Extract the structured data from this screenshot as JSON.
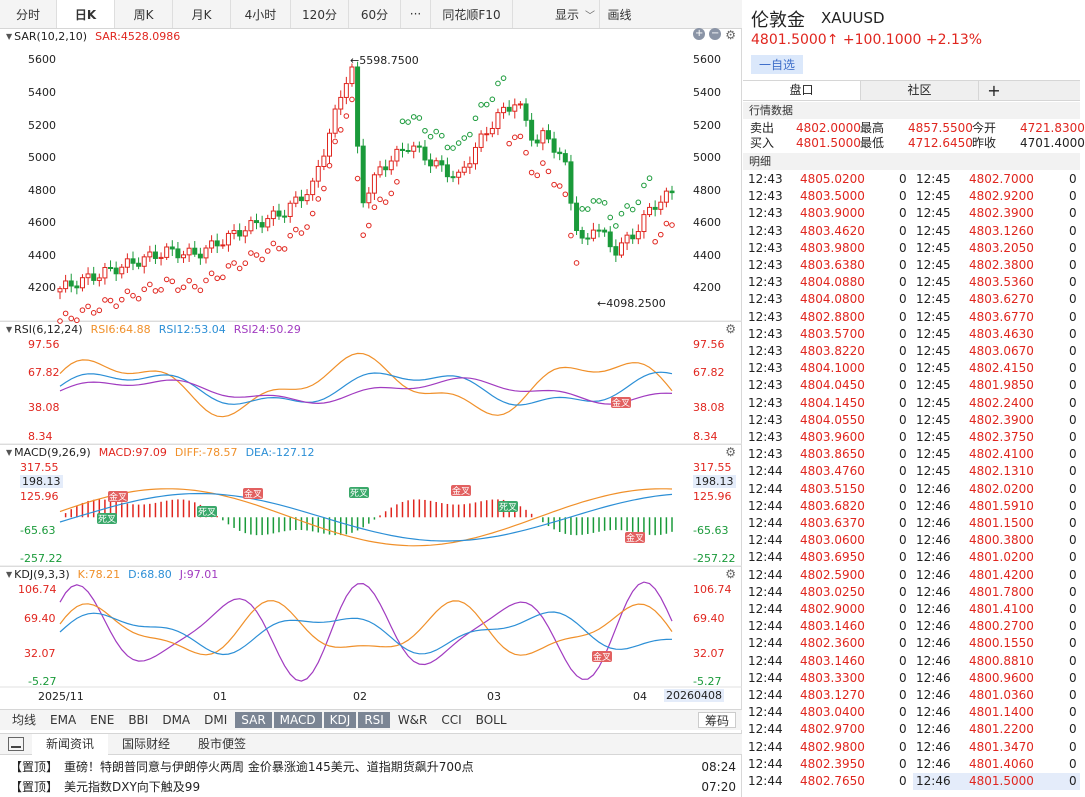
{
  "period_tabs": [
    "分时",
    "日K",
    "周K",
    "月K",
    "4小时",
    "120分",
    "60分",
    "···",
    "同花顺F10"
  ],
  "display_label": "显示",
  "draw_label": "画线",
  "panels": {
    "sar": {
      "name": "SAR(10,2,10)",
      "value": "SAR:4528.0986",
      "high_label": "←5598.7500",
      "low_label": "←4098.2500",
      "ticks": [
        "5600",
        "5400",
        "5200",
        "5000",
        "4800",
        "4600",
        "4400",
        "4200"
      ]
    },
    "rsi": {
      "name": "RSI(6,12,24)",
      "rsi6": "RSI6:64.88",
      "rsi12": "RSI12:53.04",
      "rsi24": "RSI24:50.29",
      "ticks": [
        "97.56",
        "67.82",
        "38.08",
        "8.34"
      ],
      "badge": "金叉"
    },
    "macd": {
      "name": "MACD(9,26,9)",
      "macd": "MACD:97.09",
      "diff": "DIFF:-78.57",
      "dea": "DEA:-127.12",
      "ticks": [
        "317.55",
        "125.96",
        "-65.63",
        "-257.22"
      ],
      "highlight": "198.13",
      "badges": [
        "金叉",
        "死叉",
        "死叉",
        "金叉",
        "金叉",
        "死叉",
        "死叉",
        "金叉"
      ]
    },
    "kdj": {
      "name": "KDJ(9,3,3)",
      "k": "K:78.21",
      "d": "D:68.80",
      "j": "J:97.01",
      "ticks": [
        "106.74",
        "69.40",
        "32.07",
        "-5.27"
      ],
      "badge": "金叉"
    }
  },
  "x_axis": {
    "labels": [
      "2025/11",
      "01",
      "02",
      "03",
      "04"
    ],
    "last_date": "20260408"
  },
  "indicator_tabs": [
    "均线",
    "EMA",
    "ENE",
    "BBI",
    "DMA",
    "DMI",
    "SAR",
    "MACD",
    "KDJ",
    "RSI",
    "W&R",
    "CCI",
    "BOLL"
  ],
  "indicator_active": [
    "SAR",
    "MACD",
    "KDJ",
    "RSI"
  ],
  "chip_label": "筹码",
  "news_tabs": [
    "新闻资讯",
    "国际财经",
    "股市便签"
  ],
  "news": [
    {
      "tag": "【置顶】",
      "title": "重磅！特朗普同意与伊朗停火两周 金价暴涨逾145美元、道指期货飙升700点",
      "time": "08:24"
    },
    {
      "tag": "【置顶】",
      "title": "美元指数DXY向下触及99",
      "time": "07:20"
    }
  ],
  "instrument": {
    "name": "伦敦金",
    "code": "XAUUSD",
    "price": "4801.5000↑",
    "change": "+100.1000",
    "pct": "+2.13%",
    "watch_label": "一自选"
  },
  "quote_tabs": [
    "盘口",
    "社区"
  ],
  "quote_add": "+",
  "section_quotes": "行情数据",
  "section_ticks": "明细",
  "quotes": [
    [
      {
        "l": "卖出",
        "v": "4802.0000"
      },
      {
        "l": "最高",
        "v": "4857.5500"
      },
      {
        "l": "今开",
        "v": "4721.8300"
      }
    ],
    [
      {
        "l": "买入",
        "v": "4801.5000"
      },
      {
        "l": "最低",
        "v": "4712.6450"
      },
      {
        "l": "昨收",
        "v": "4701.4000"
      }
    ]
  ],
  "ticks_left": [
    [
      "12:43",
      "4805.0200",
      "0"
    ],
    [
      "12:43",
      "4803.5000",
      "0"
    ],
    [
      "12:43",
      "4803.9000",
      "0"
    ],
    [
      "12:43",
      "4803.4620",
      "0"
    ],
    [
      "12:43",
      "4803.9800",
      "0"
    ],
    [
      "12:43",
      "4803.6380",
      "0"
    ],
    [
      "12:43",
      "4804.0880",
      "0"
    ],
    [
      "12:43",
      "4804.0800",
      "0"
    ],
    [
      "12:43",
      "4802.8800",
      "0"
    ],
    [
      "12:43",
      "4803.5700",
      "0"
    ],
    [
      "12:43",
      "4803.8220",
      "0"
    ],
    [
      "12:43",
      "4804.1000",
      "0"
    ],
    [
      "12:43",
      "4804.0450",
      "0"
    ],
    [
      "12:43",
      "4804.1450",
      "0"
    ],
    [
      "12:43",
      "4804.0550",
      "0"
    ],
    [
      "12:43",
      "4803.9600",
      "0"
    ],
    [
      "12:43",
      "4803.8650",
      "0"
    ],
    [
      "12:44",
      "4803.4760",
      "0"
    ],
    [
      "12:44",
      "4803.5150",
      "0"
    ],
    [
      "12:44",
      "4803.6820",
      "0"
    ],
    [
      "12:44",
      "4803.6370",
      "0"
    ],
    [
      "12:44",
      "4803.0600",
      "0"
    ],
    [
      "12:44",
      "4803.6950",
      "0"
    ],
    [
      "12:44",
      "4802.5900",
      "0"
    ],
    [
      "12:44",
      "4803.0250",
      "0"
    ],
    [
      "12:44",
      "4802.9000",
      "0"
    ],
    [
      "12:44",
      "4803.1460",
      "0"
    ],
    [
      "12:44",
      "4802.3600",
      "0"
    ],
    [
      "12:44",
      "4803.1460",
      "0"
    ],
    [
      "12:44",
      "4803.3300",
      "0"
    ],
    [
      "12:44",
      "4803.1270",
      "0"
    ],
    [
      "12:44",
      "4803.0400",
      "0"
    ],
    [
      "12:44",
      "4802.9700",
      "0"
    ],
    [
      "12:44",
      "4802.9800",
      "0"
    ],
    [
      "12:44",
      "4802.3950",
      "0"
    ],
    [
      "12:44",
      "4802.7650",
      "0"
    ]
  ],
  "ticks_right": [
    [
      "12:45",
      "4802.7000",
      "0"
    ],
    [
      "12:45",
      "4802.9200",
      "0"
    ],
    [
      "12:45",
      "4802.3900",
      "0"
    ],
    [
      "12:45",
      "4803.1260",
      "0"
    ],
    [
      "12:45",
      "4803.2050",
      "0"
    ],
    [
      "12:45",
      "4802.3800",
      "0"
    ],
    [
      "12:45",
      "4803.5360",
      "0"
    ],
    [
      "12:45",
      "4803.6270",
      "0"
    ],
    [
      "12:45",
      "4803.6770",
      "0"
    ],
    [
      "12:45",
      "4803.4630",
      "0"
    ],
    [
      "12:45",
      "4803.0670",
      "0"
    ],
    [
      "12:45",
      "4802.4150",
      "0"
    ],
    [
      "12:45",
      "4801.9850",
      "0"
    ],
    [
      "12:45",
      "4802.2400",
      "0"
    ],
    [
      "12:45",
      "4802.3900",
      "0"
    ],
    [
      "12:45",
      "4802.3750",
      "0"
    ],
    [
      "12:45",
      "4802.4100",
      "0"
    ],
    [
      "12:45",
      "4802.1310",
      "0"
    ],
    [
      "12:46",
      "4802.0200",
      "0"
    ],
    [
      "12:46",
      "4801.5910",
      "0"
    ],
    [
      "12:46",
      "4801.1500",
      "0"
    ],
    [
      "12:46",
      "4800.3800",
      "0"
    ],
    [
      "12:46",
      "4801.0200",
      "0"
    ],
    [
      "12:46",
      "4801.4200",
      "0"
    ],
    [
      "12:46",
      "4801.7800",
      "0"
    ],
    [
      "12:46",
      "4801.4100",
      "0"
    ],
    [
      "12:46",
      "4800.2700",
      "0"
    ],
    [
      "12:46",
      "4800.1550",
      "0"
    ],
    [
      "12:46",
      "4800.8810",
      "0"
    ],
    [
      "12:46",
      "4800.9600",
      "0"
    ],
    [
      "12:46",
      "4801.0360",
      "0"
    ],
    [
      "12:46",
      "4801.1400",
      "0"
    ],
    [
      "12:46",
      "4801.2200",
      "0"
    ],
    [
      "12:46",
      "4801.3470",
      "0"
    ],
    [
      "12:46",
      "4801.4060",
      "0"
    ],
    [
      "12:46",
      "4801.5000",
      "0"
    ]
  ],
  "colors": {
    "up": "#e0261f",
    "down": "#1a9a3a",
    "orange": "#f0902a",
    "blue": "#2c8fd6",
    "purple": "#a13bc0",
    "accent_bg": "#e4ecfa"
  }
}
